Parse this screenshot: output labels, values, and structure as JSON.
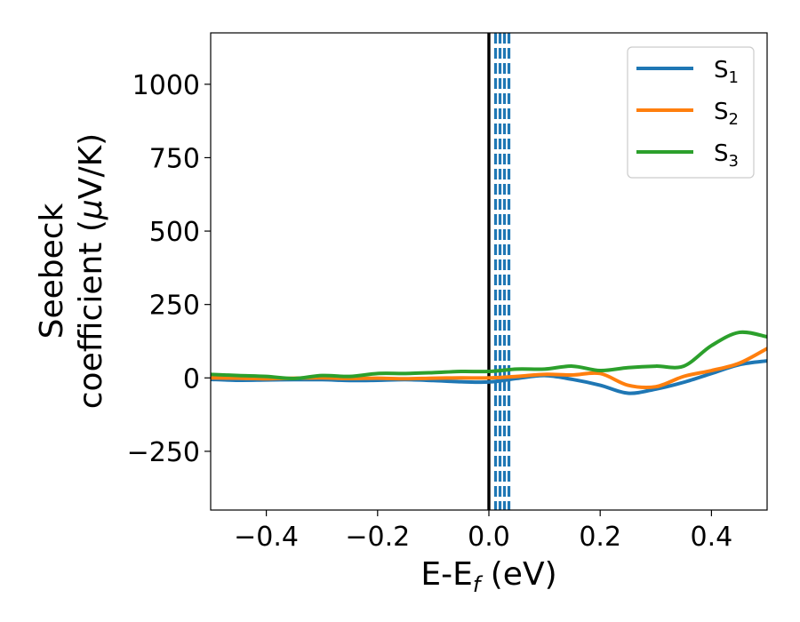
{
  "chart_data": {
    "type": "line",
    "xlabel": {
      "main": "E-E",
      "sub": "f",
      "unit": " (eV)"
    },
    "ylabel": {
      "line1": "Seebeck",
      "line2_prefix": "coefficient  (",
      "mu": "μ",
      "line2_suffix": "V/K)"
    },
    "xlim": [
      -0.5,
      0.5
    ],
    "ylim": [
      -450,
      1175
    ],
    "xticks": [
      -0.4,
      -0.2,
      0.0,
      0.2,
      0.4
    ],
    "xtick_labels": [
      "−0.4",
      "−0.2",
      "0.0",
      "0.2",
      "0.4"
    ],
    "yticks": [
      -250,
      0,
      250,
      500,
      750,
      1000
    ],
    "ytick_labels": [
      "−250",
      "0",
      "250",
      "500",
      "750",
      "1000"
    ],
    "grid": false,
    "legend_position": "top-right",
    "vertical_lines": [
      {
        "x": 0.0,
        "style": "solid",
        "color": "#000000"
      },
      {
        "x": 0.012,
        "style": "dashed",
        "color": "#1f77b4"
      },
      {
        "x": 0.02,
        "style": "dashed",
        "color": "#1f77b4"
      },
      {
        "x": 0.028,
        "style": "dashed",
        "color": "#1f77b4"
      },
      {
        "x": 0.036,
        "style": "dashed",
        "color": "#1f77b4"
      }
    ],
    "series": [
      {
        "name": "S",
        "sub": "1",
        "color": "#1f77b4",
        "x": [
          -0.5,
          -0.45,
          -0.4,
          -0.35,
          -0.3,
          -0.25,
          -0.2,
          -0.15,
          -0.1,
          -0.05,
          0.0,
          0.05,
          0.1,
          0.15,
          0.2,
          0.25,
          0.3,
          0.35,
          0.4,
          0.45,
          0.5
        ],
        "y": [
          -5,
          -8,
          -7,
          -6,
          -6,
          -9,
          -8,
          -6,
          -9,
          -13,
          -14,
          -2,
          8,
          -5,
          -25,
          -52,
          -38,
          -15,
          15,
          45,
          58
        ]
      },
      {
        "name": "S",
        "sub": "2",
        "color": "#ff7f0e",
        "x": [
          -0.5,
          -0.45,
          -0.4,
          -0.35,
          -0.3,
          -0.25,
          -0.2,
          -0.15,
          -0.1,
          -0.05,
          0.0,
          0.05,
          0.1,
          0.15,
          0.2,
          0.25,
          0.3,
          0.35,
          0.4,
          0.45,
          0.5
        ],
        "y": [
          0,
          -1,
          -3,
          -1,
          0,
          -2,
          -1,
          -3,
          -1,
          0,
          0,
          5,
          12,
          10,
          15,
          -25,
          -30,
          5,
          25,
          50,
          100
        ]
      },
      {
        "name": "S",
        "sub": "3",
        "color": "#2ca02c",
        "x": [
          -0.5,
          -0.45,
          -0.4,
          -0.35,
          -0.3,
          -0.25,
          -0.2,
          -0.15,
          -0.1,
          -0.05,
          0.0,
          0.05,
          0.1,
          0.15,
          0.2,
          0.25,
          0.3,
          0.35,
          0.4,
          0.45,
          0.5
        ],
        "y": [
          12,
          8,
          5,
          -2,
          8,
          5,
          15,
          15,
          18,
          22,
          22,
          30,
          30,
          40,
          25,
          35,
          40,
          40,
          110,
          155,
          140
        ]
      }
    ]
  }
}
